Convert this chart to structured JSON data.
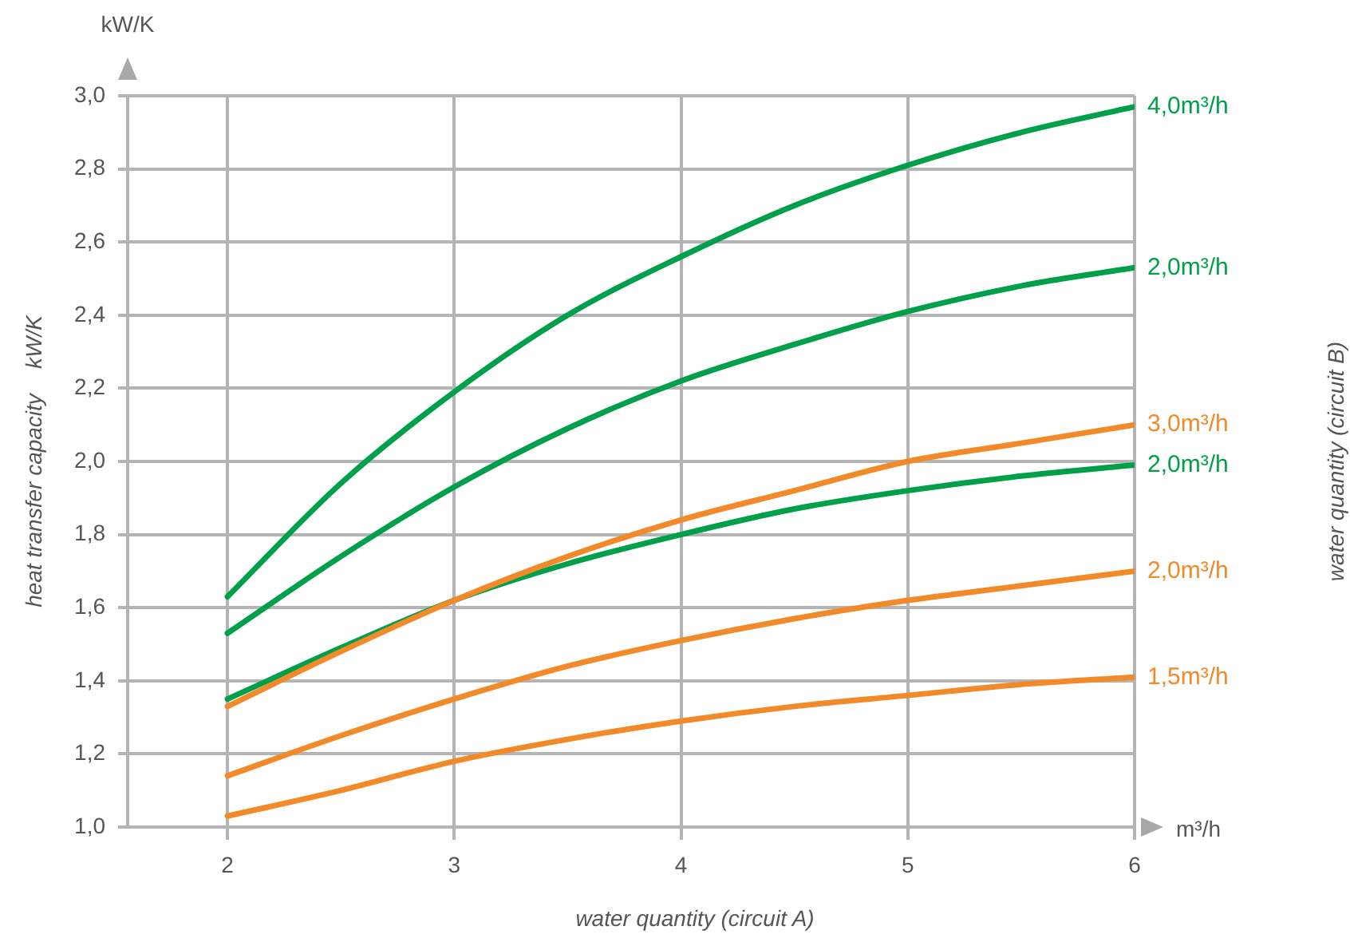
{
  "chart_data": {
    "type": "line",
    "xlabel": "water quantity (circuit A)",
    "ylabel": "heat transfer capacity    kW/K",
    "annotations": [
      "kW/K",
      "m³/h",
      "water quantity (circuit B)"
    ],
    "x": [
      2,
      2.5,
      3,
      3.5,
      4,
      4.5,
      5,
      5.5,
      6
    ],
    "series": [
      {
        "name": "4,0m³/h",
        "color": "#00a04b",
        "values": [
          1.63,
          1.94,
          2.19,
          2.4,
          2.56,
          2.7,
          2.81,
          2.9,
          2.97
        ]
      },
      {
        "name": "2,0m³/h",
        "color": "#00a04b",
        "values": [
          1.53,
          1.74,
          1.93,
          2.09,
          2.22,
          2.32,
          2.41,
          2.48,
          2.53
        ]
      },
      {
        "name": "3,0m³/h",
        "color": "#f28a2a",
        "values": [
          1.33,
          1.48,
          1.62,
          1.74,
          1.84,
          1.92,
          2.0,
          2.05,
          2.1
        ]
      },
      {
        "name": "2,0m³/h",
        "color": "#00a04b",
        "values": [
          1.35,
          1.49,
          1.62,
          1.72,
          1.8,
          1.87,
          1.92,
          1.96,
          1.99
        ]
      },
      {
        "name": "2,0m³/h",
        "color": "#f28a2a",
        "values": [
          1.14,
          1.25,
          1.35,
          1.44,
          1.51,
          1.57,
          1.62,
          1.66,
          1.7
        ]
      },
      {
        "name": "1,5m³/h",
        "color": "#f28a2a",
        "values": [
          1.03,
          1.1,
          1.18,
          1.24,
          1.29,
          1.33,
          1.36,
          1.39,
          1.41
        ]
      }
    ],
    "xlim": [
      1.56,
      6
    ],
    "xticks": [
      2,
      3,
      4,
      5,
      6
    ],
    "ylim": [
      1.0,
      3.0
    ],
    "yticks": [
      {
        "value": 1.0,
        "label": "1,0"
      },
      {
        "value": 1.2,
        "label": "1,2"
      },
      {
        "value": 1.4,
        "label": "1,4"
      },
      {
        "value": 1.6,
        "label": "1,6"
      },
      {
        "value": 1.8,
        "label": "1,8"
      },
      {
        "value": 2.0,
        "label": "2,0"
      },
      {
        "value": 2.2,
        "label": "2,2"
      },
      {
        "value": 2.4,
        "label": "2,4"
      },
      {
        "value": 2.6,
        "label": "2,6"
      },
      {
        "value": 2.8,
        "label": "2,8"
      },
      {
        "value": 3.0,
        "label": "3,0"
      }
    ],
    "grid": true,
    "legend": false,
    "marker": "none",
    "line_style": "solid"
  }
}
